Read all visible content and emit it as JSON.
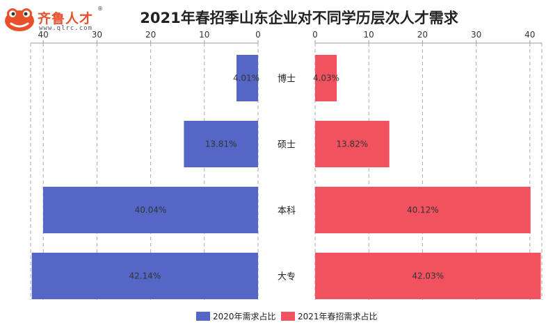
{
  "logo": {
    "name": "齐鲁人才",
    "url": "www.qlrc.com",
    "reg": "®"
  },
  "chart_data": {
    "type": "bar",
    "title": "2021年春招季山东企业对不同学历层次人才需求",
    "categories": [
      "博士",
      "硕士",
      "本科",
      "大专"
    ],
    "series": [
      {
        "name": "2020年需求占比",
        "values": [
          4.01,
          13.81,
          40.04,
          42.14
        ],
        "labels": [
          "4.01%",
          "13.81%",
          "40.04%",
          "42.14%"
        ],
        "color": "#5467c6"
      },
      {
        "name": "2021年春招需求占比",
        "values": [
          4.03,
          13.82,
          40.12,
          42.03
        ],
        "labels": [
          "4.03%",
          "13.82%",
          "40.12%",
          "42.03%"
        ],
        "color": "#f25160"
      }
    ],
    "left_axis": {
      "ticks": [
        40,
        30,
        20,
        10,
        0
      ],
      "reversed": true
    },
    "right_axis": {
      "ticks": [
        0,
        10,
        20,
        30,
        40
      ]
    },
    "xlim": [
      0,
      42.5
    ],
    "grid": true,
    "legend_position": "bottom"
  }
}
